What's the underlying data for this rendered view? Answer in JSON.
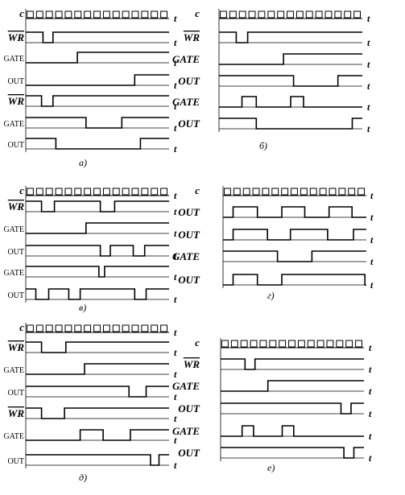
{
  "time_label": "t",
  "panels": [
    {
      "id": "a",
      "caption": "а)",
      "traces": [
        {
          "label": "c",
          "kind": "clock",
          "big": true
        },
        {
          "label": "WR",
          "overline": true,
          "big": true,
          "kind": "signal",
          "steps": [
            [
              0,
              1
            ],
            [
              0.12,
              1
            ],
            [
              0.12,
              0
            ],
            [
              0.19,
              0
            ],
            [
              0.19,
              1
            ],
            [
              1,
              1
            ]
          ]
        },
        {
          "label": "GATE",
          "kind": "signal",
          "steps": [
            [
              0,
              0
            ],
            [
              0.36,
              0
            ],
            [
              0.36,
              1
            ],
            [
              1,
              1
            ]
          ]
        },
        {
          "label": "OUT",
          "kind": "signal",
          "steps": [
            [
              0,
              0
            ],
            [
              0.76,
              0
            ],
            [
              0.76,
              1
            ],
            [
              1,
              1
            ]
          ]
        },
        {
          "label": "WR",
          "overline": true,
          "big": true,
          "kind": "signal",
          "steps": [
            [
              0,
              1
            ],
            [
              0.11,
              1
            ],
            [
              0.11,
              0
            ],
            [
              0.19,
              0
            ],
            [
              0.19,
              1
            ],
            [
              1,
              1
            ]
          ]
        },
        {
          "label": "GATE",
          "kind": "signal",
          "steps": [
            [
              0,
              1
            ],
            [
              0.42,
              1
            ],
            [
              0.42,
              0
            ],
            [
              0.67,
              0
            ],
            [
              0.67,
              1
            ],
            [
              1,
              1
            ]
          ]
        },
        {
          "label": "OUT",
          "kind": "signal",
          "steps": [
            [
              0,
              1
            ],
            [
              0.21,
              1
            ],
            [
              0.21,
              0
            ],
            [
              0.8,
              0
            ],
            [
              0.8,
              1
            ],
            [
              1,
              1
            ]
          ]
        }
      ]
    },
    {
      "id": "b",
      "caption": "б)",
      "traces": [
        {
          "label": "c",
          "kind": "clock",
          "big": true
        },
        {
          "label": "WR",
          "overline": true,
          "big": true,
          "kind": "signal",
          "steps": [
            [
              0,
              1
            ],
            [
              0.12,
              1
            ],
            [
              0.12,
              0
            ],
            [
              0.2,
              0
            ],
            [
              0.2,
              1
            ],
            [
              1,
              1
            ]
          ]
        },
        {
          "label": "GATE",
          "big": true,
          "kind": "signal",
          "steps": [
            [
              0,
              0
            ],
            [
              0.45,
              0
            ],
            [
              0.45,
              1
            ],
            [
              1,
              1
            ]
          ]
        },
        {
          "label": "OUT",
          "big": true,
          "kind": "signal",
          "steps": [
            [
              0,
              1
            ],
            [
              0.52,
              1
            ],
            [
              0.52,
              0
            ],
            [
              0.83,
              0
            ],
            [
              0.83,
              1
            ],
            [
              1,
              1
            ]
          ]
        },
        {
          "label": "GATE",
          "big": true,
          "kind": "signal",
          "steps": [
            [
              0,
              0
            ],
            [
              0.16,
              0
            ],
            [
              0.16,
              1
            ],
            [
              0.26,
              1
            ],
            [
              0.26,
              0
            ],
            [
              0.5,
              0
            ],
            [
              0.5,
              1
            ],
            [
              0.59,
              1
            ],
            [
              0.59,
              0
            ],
            [
              1,
              0
            ]
          ]
        },
        {
          "label": "OUT",
          "big": true,
          "kind": "signal",
          "steps": [
            [
              0,
              1
            ],
            [
              0.26,
              1
            ],
            [
              0.26,
              0
            ],
            [
              0.93,
              0
            ],
            [
              0.93,
              1
            ],
            [
              1,
              1
            ]
          ]
        }
      ]
    },
    {
      "id": "v",
      "caption": "в)",
      "traces": [
        {
          "label": "c",
          "kind": "clock",
          "big": true
        },
        {
          "label": "WR",
          "overline": true,
          "big": true,
          "kind": "signal",
          "steps": [
            [
              0,
              1
            ],
            [
              0.11,
              1
            ],
            [
              0.11,
              0
            ],
            [
              0.2,
              0
            ],
            [
              0.2,
              1
            ],
            [
              0.52,
              1
            ],
            [
              0.52,
              0
            ],
            [
              0.62,
              0
            ],
            [
              0.62,
              1
            ],
            [
              1,
              1
            ]
          ]
        },
        {
          "label": "GATE",
          "kind": "signal",
          "steps": [
            [
              0,
              0
            ],
            [
              0.42,
              0
            ],
            [
              0.42,
              1
            ],
            [
              1,
              1
            ]
          ]
        },
        {
          "label": "OUT",
          "kind": "signal",
          "steps": [
            [
              0,
              1
            ],
            [
              0.52,
              1
            ],
            [
              0.52,
              0
            ],
            [
              0.59,
              0
            ],
            [
              0.59,
              1
            ],
            [
              0.75,
              1
            ],
            [
              0.75,
              0
            ],
            [
              0.83,
              0
            ],
            [
              0.83,
              1
            ],
            [
              1,
              1
            ]
          ]
        },
        {
          "label": "GATE",
          "kind": "signal",
          "steps": [
            [
              0,
              1
            ],
            [
              0.51,
              1
            ],
            [
              0.51,
              0
            ],
            [
              0.55,
              0
            ],
            [
              0.55,
              1
            ],
            [
              1,
              1
            ]
          ]
        },
        {
          "label": "OUT",
          "kind": "signal",
          "steps": [
            [
              0,
              1
            ],
            [
              0.07,
              1
            ],
            [
              0.07,
              0
            ],
            [
              0.16,
              0
            ],
            [
              0.16,
              1
            ],
            [
              0.3,
              1
            ],
            [
              0.3,
              0
            ],
            [
              0.38,
              0
            ],
            [
              0.38,
              1
            ],
            [
              0.76,
              1
            ],
            [
              0.76,
              0
            ],
            [
              0.84,
              0
            ],
            [
              0.84,
              1
            ],
            [
              1,
              1
            ]
          ]
        }
      ]
    },
    {
      "id": "g",
      "caption": "г)",
      "traces": [
        {
          "label": "c",
          "kind": "clock",
          "big": true
        },
        {
          "label": "OUT",
          "big": true,
          "kind": "signal",
          "steps": [
            [
              0,
              0
            ],
            [
              0.07,
              0
            ],
            [
              0.07,
              1
            ],
            [
              0.24,
              1
            ],
            [
              0.24,
              0
            ],
            [
              0.41,
              0
            ],
            [
              0.41,
              1
            ],
            [
              0.57,
              1
            ],
            [
              0.57,
              0
            ],
            [
              0.74,
              0
            ],
            [
              0.74,
              1
            ],
            [
              0.9,
              1
            ],
            [
              0.9,
              0
            ],
            [
              1,
              0
            ]
          ]
        },
        {
          "label": "OUT",
          "big": true,
          "kind": "signal",
          "steps": [
            [
              0,
              0
            ],
            [
              0.07,
              0
            ],
            [
              0.07,
              1
            ],
            [
              0.31,
              1
            ],
            [
              0.31,
              0
            ],
            [
              0.47,
              0
            ],
            [
              0.47,
              1
            ],
            [
              0.73,
              1
            ],
            [
              0.73,
              0
            ],
            [
              0.91,
              0
            ],
            [
              0.91,
              1
            ],
            [
              1,
              1
            ]
          ]
        },
        {
          "label": "GATE",
          "big": true,
          "kind": "signal",
          "steps": [
            [
              0,
              1
            ],
            [
              0.38,
              1
            ],
            [
              0.38,
              0
            ],
            [
              0.62,
              0
            ],
            [
              0.62,
              1
            ],
            [
              1,
              1
            ]
          ]
        },
        {
          "label": "OUT",
          "big": true,
          "kind": "signal",
          "steps": [
            [
              0,
              0
            ],
            [
              0.07,
              0
            ],
            [
              0.07,
              1
            ],
            [
              0.24,
              1
            ],
            [
              0.24,
              0
            ],
            [
              0.41,
              0
            ],
            [
              0.41,
              1
            ],
            [
              0.99,
              1
            ],
            [
              0.99,
              0
            ],
            [
              1,
              0
            ]
          ]
        }
      ]
    },
    {
      "id": "d",
      "caption": "д)",
      "traces": [
        {
          "label": "c",
          "kind": "clock",
          "big": true
        },
        {
          "label": "WR",
          "overline": true,
          "big": true,
          "kind": "signal",
          "steps": [
            [
              0,
              1
            ],
            [
              0.11,
              1
            ],
            [
              0.11,
              0
            ],
            [
              0.28,
              0
            ],
            [
              0.28,
              1
            ],
            [
              1,
              1
            ]
          ]
        },
        {
          "label": "GATE",
          "kind": "signal",
          "steps": [
            [
              0,
              0
            ],
            [
              0.41,
              0
            ],
            [
              0.41,
              1
            ],
            [
              1,
              1
            ]
          ]
        },
        {
          "label": "OUT",
          "kind": "signal",
          "steps": [
            [
              0,
              1
            ],
            [
              0.72,
              1
            ],
            [
              0.72,
              0
            ],
            [
              0.84,
              0
            ],
            [
              0.84,
              1
            ],
            [
              1,
              1
            ]
          ]
        },
        {
          "label": "WR",
          "overline": true,
          "big": true,
          "kind": "signal",
          "steps": [
            [
              0,
              1
            ],
            [
              0.11,
              1
            ],
            [
              0.11,
              0
            ],
            [
              0.27,
              0
            ],
            [
              0.27,
              1
            ],
            [
              1,
              1
            ]
          ]
        },
        {
          "label": "GATE",
          "kind": "signal",
          "steps": [
            [
              0,
              0
            ],
            [
              0.38,
              0
            ],
            [
              0.38,
              1
            ],
            [
              0.54,
              1
            ],
            [
              0.54,
              0
            ],
            [
              0.73,
              0
            ],
            [
              0.73,
              1
            ],
            [
              1,
              1
            ]
          ]
        },
        {
          "label": "OUT",
          "kind": "signal",
          "steps": [
            [
              0,
              1
            ],
            [
              0.87,
              1
            ],
            [
              0.87,
              0
            ],
            [
              0.93,
              0
            ],
            [
              0.93,
              1
            ],
            [
              1,
              1
            ]
          ]
        }
      ]
    },
    {
      "id": "e",
      "caption": "е)",
      "traces": [
        {
          "label": "c",
          "kind": "clock",
          "big": true
        },
        {
          "label": "WR",
          "overline": true,
          "big": true,
          "kind": "signal",
          "steps": [
            [
              0,
              1
            ],
            [
              0.17,
              1
            ],
            [
              0.17,
              0
            ],
            [
              0.24,
              0
            ],
            [
              0.24,
              1
            ],
            [
              1,
              1
            ]
          ]
        },
        {
          "label": "GATE",
          "big": true,
          "kind": "signal",
          "steps": [
            [
              0,
              0
            ],
            [
              0.33,
              0
            ],
            [
              0.33,
              1
            ],
            [
              1,
              1
            ]
          ]
        },
        {
          "label": "OUT",
          "big": true,
          "kind": "signal",
          "steps": [
            [
              0,
              1
            ],
            [
              0.84,
              1
            ],
            [
              0.84,
              0
            ],
            [
              0.91,
              0
            ],
            [
              0.91,
              1
            ],
            [
              1,
              1
            ]
          ]
        },
        {
          "label": "GATE",
          "big": true,
          "kind": "signal",
          "steps": [
            [
              0,
              0
            ],
            [
              0.15,
              0
            ],
            [
              0.15,
              1
            ],
            [
              0.23,
              1
            ],
            [
              0.23,
              0
            ],
            [
              0.43,
              0
            ],
            [
              0.43,
              1
            ],
            [
              0.51,
              1
            ],
            [
              0.51,
              0
            ],
            [
              1,
              0
            ]
          ]
        },
        {
          "label": "OUT",
          "big": true,
          "kind": "signal",
          "steps": [
            [
              0,
              1
            ],
            [
              0.86,
              1
            ],
            [
              0.86,
              0
            ],
            [
              0.93,
              0
            ],
            [
              0.93,
              1
            ],
            [
              1,
              1
            ]
          ]
        }
      ]
    }
  ]
}
